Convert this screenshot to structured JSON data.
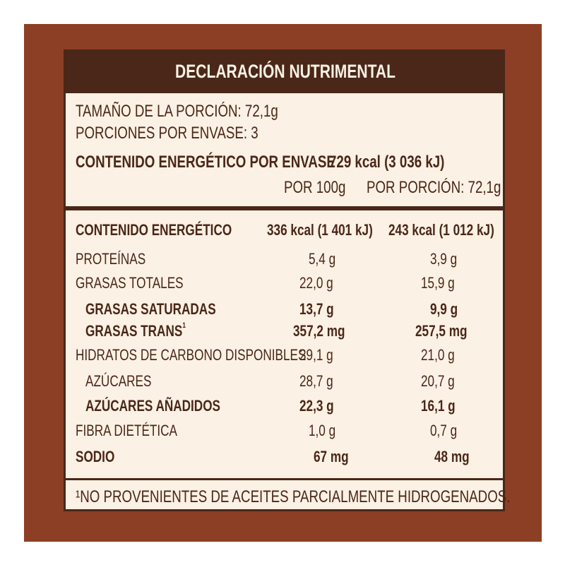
{
  "label": {
    "title": "DECLARACIÓN NUTRIMENTAL",
    "serving_size": "TAMAÑO DE LA PORCIÓN: 72,1g",
    "servings_per_container": "PORCIONES POR ENVASE: 3",
    "energy_per_container_label": "CONTENIDO ENERGÉTICO POR ENVASE",
    "energy_per_container_value": "729 kcal  (3 036 kJ)",
    "col_per100": "POR 100g",
    "col_per_serving": "POR PORCIÓN: 72,1g",
    "footnote": "¹NO PROVENIENTES DE ACEITES PARCIALMENTE HIDROGENADOS."
  },
  "rows": [
    {
      "name": "CONTENIDO ENERGÉTICO",
      "per100": "336 kcal (1 401 kJ)",
      "per_serving": "243 kcal (1 012 kJ)"
    },
    {
      "name": "PROTEÍNAS",
      "per100": "5,4  g",
      "per_serving": "3,9  g"
    },
    {
      "name": "GRASAS TOTALES",
      "per100": "22,0  g",
      "per_serving": "15,9  g"
    },
    {
      "name": "GRASAS SATURADAS",
      "per100": "13,7  g",
      "per_serving": "9,9  g"
    },
    {
      "name": "GRASAS TRANS",
      "sup": "1",
      "per100": "357,2 mg",
      "per_serving": "257,5 mg"
    },
    {
      "name": "HIDRATOS DE CARBONO DISPONIBLES",
      "per100": "29,1  g",
      "per_serving": "21,0  g"
    },
    {
      "name": "AZÚCARES",
      "per100": "28,7  g",
      "per_serving": "20,7  g"
    },
    {
      "name": "AZÚCARES AÑADIDOS",
      "per100": "22,3  g",
      "per_serving": "16,1  g"
    },
    {
      "name": "FIBRA DIETÉTICA",
      "per100": "1,0  g",
      "per_serving": "0,7  g"
    },
    {
      "name": "SODIO",
      "per100": "67 mg",
      "per_serving": "48 mg"
    }
  ]
}
